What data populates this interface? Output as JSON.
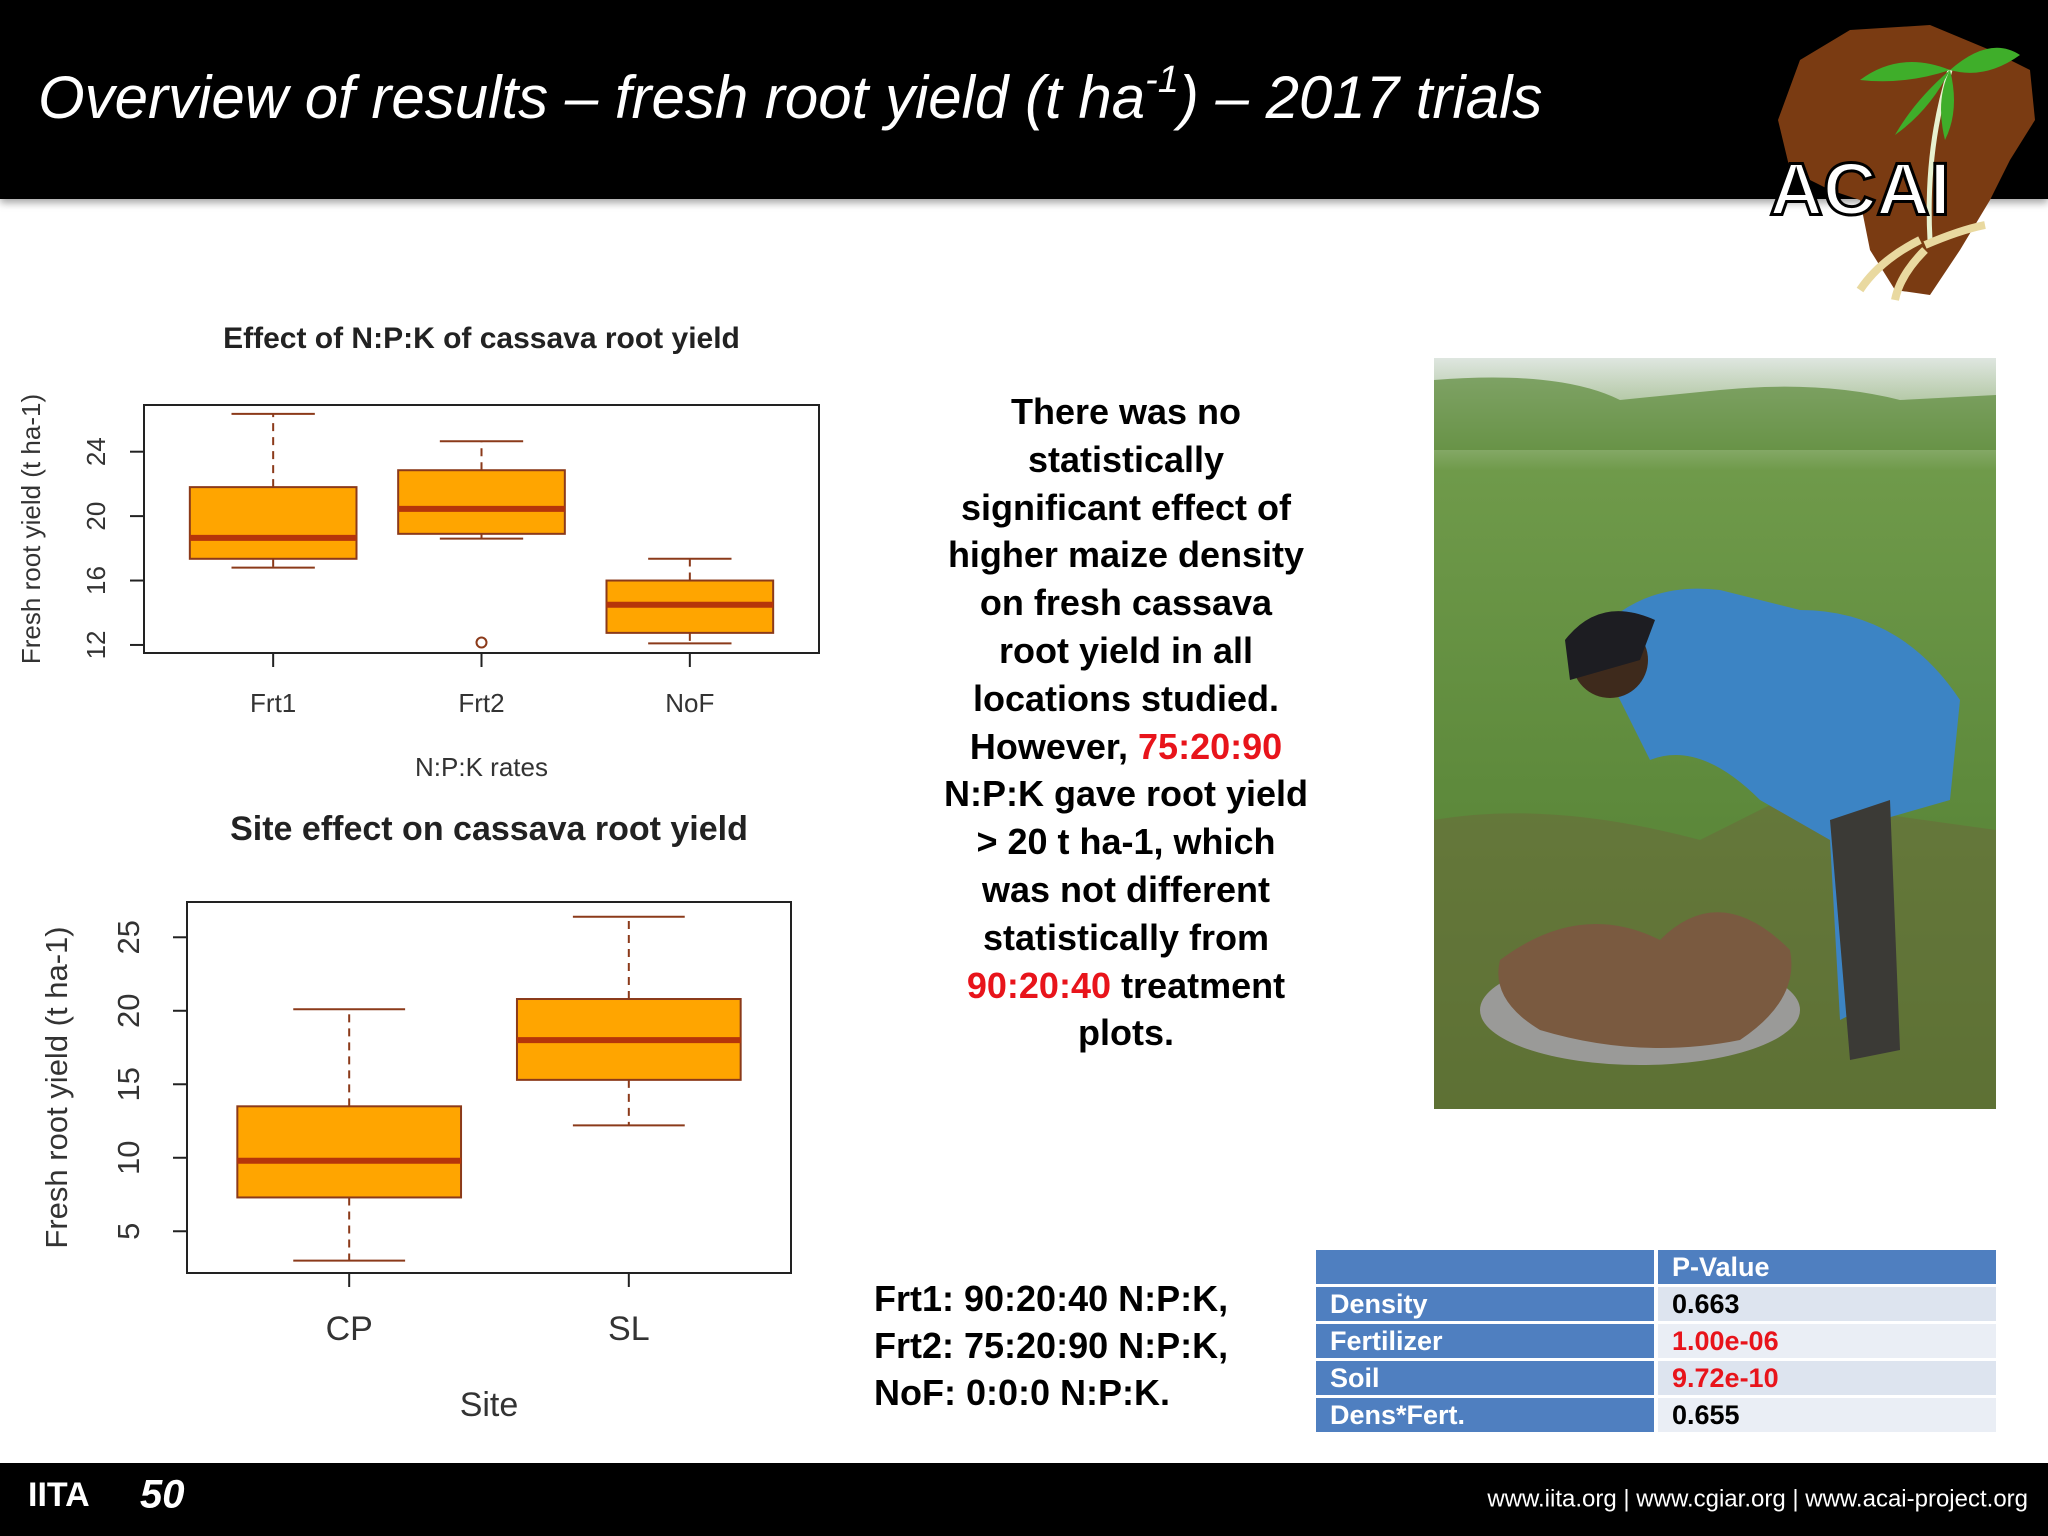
{
  "header": {
    "title_parts": [
      "Overview of results – fresh root yield (t ha",
      "-1",
      ") – 2017 trials"
    ],
    "logo_text": "ACAI"
  },
  "chart_data": [
    {
      "type": "boxplot",
      "title": "Effect of N:P:K of cassava root yield",
      "x_label": "N:P:K rates",
      "y_label": "Fresh root yield (t ha-1)",
      "categories": [
        "Frt1",
        "Frt2",
        "NoF"
      ],
      "boxes": [
        {
          "low": 16.8,
          "q1": 17.35,
          "median": 18.65,
          "q3": 21.8,
          "high": 26.35,
          "outliers": []
        },
        {
          "low": 18.6,
          "q1": 18.9,
          "median": 20.45,
          "q3": 22.85,
          "high": 24.65,
          "outliers": [
            12.15
          ]
        },
        {
          "low": 12.1,
          "q1": 12.75,
          "median": 14.5,
          "q3": 16.0,
          "high": 17.35,
          "outliers": []
        }
      ],
      "ylim": [
        11.5,
        26.9
      ],
      "yticks": [
        12,
        16,
        20,
        24
      ],
      "box_color": "#ffa500",
      "median_color": "#b5350a",
      "line_color": "#8b3a1a"
    },
    {
      "type": "boxplot",
      "title": "Site effect on cassava root yield",
      "x_label": "Site",
      "y_label": "Fresh root yield (t ha-1)",
      "categories": [
        "CP",
        "SL"
      ],
      "boxes": [
        {
          "low": 3.0,
          "q1": 7.3,
          "median": 9.8,
          "q3": 13.5,
          "high": 20.1,
          "outliers": []
        },
        {
          "low": 12.2,
          "q1": 15.3,
          "median": 18.0,
          "q3": 20.8,
          "high": 26.4,
          "outliers": []
        }
      ],
      "ylim": [
        2.16,
        27.4
      ],
      "yticks": [
        5,
        10,
        15,
        20,
        25
      ],
      "box_color": "#ffa500",
      "median_color": "#b5350a",
      "line_color": "#8b3a1a"
    }
  ],
  "summary": {
    "lines": [
      [
        "There was no"
      ],
      [
        "statistically"
      ],
      [
        "significant effect of"
      ],
      [
        "higher maize density"
      ],
      [
        "on fresh cassava"
      ],
      [
        "root yield in all"
      ],
      [
        "locations studied."
      ],
      [
        "However,",
        {
          "text": "75:20:90",
          "color": "#e8141b"
        }
      ],
      [
        "N:P:K gave root yield"
      ],
      [
        "> 20 t ha-1, which"
      ],
      [
        "was not different"
      ],
      [
        "statistically from"
      ],
      [
        {
          "text": "90:20:40",
          "color": "#e8141b"
        },
        "treatment"
      ],
      [
        "plots."
      ]
    ]
  },
  "legend_notes": [
    "Frt1: 90:20:40 N:P:K,",
    "Frt2: 75:20:90 N:P:K,",
    "NoF: 0:0:0 N:P:K."
  ],
  "table": {
    "header": "P-Value",
    "rows": [
      {
        "label": "Density",
        "p_value": "0.663",
        "color": "#000000"
      },
      {
        "label": "Fertilizer",
        "p_value": "1.00e-06",
        "color": "#e8141b"
      },
      {
        "label": "Soil",
        "p_value": "9.72e-10",
        "color": "#e8141b"
      },
      {
        "label": "Dens*Fert.",
        "p_value": "0.655",
        "color": "#000000"
      }
    ]
  },
  "footer": {
    "logo_text": "IITA",
    "anniversary": "50",
    "links": "www.iita.org | www.cgiar.org | www.acai-project.org"
  }
}
